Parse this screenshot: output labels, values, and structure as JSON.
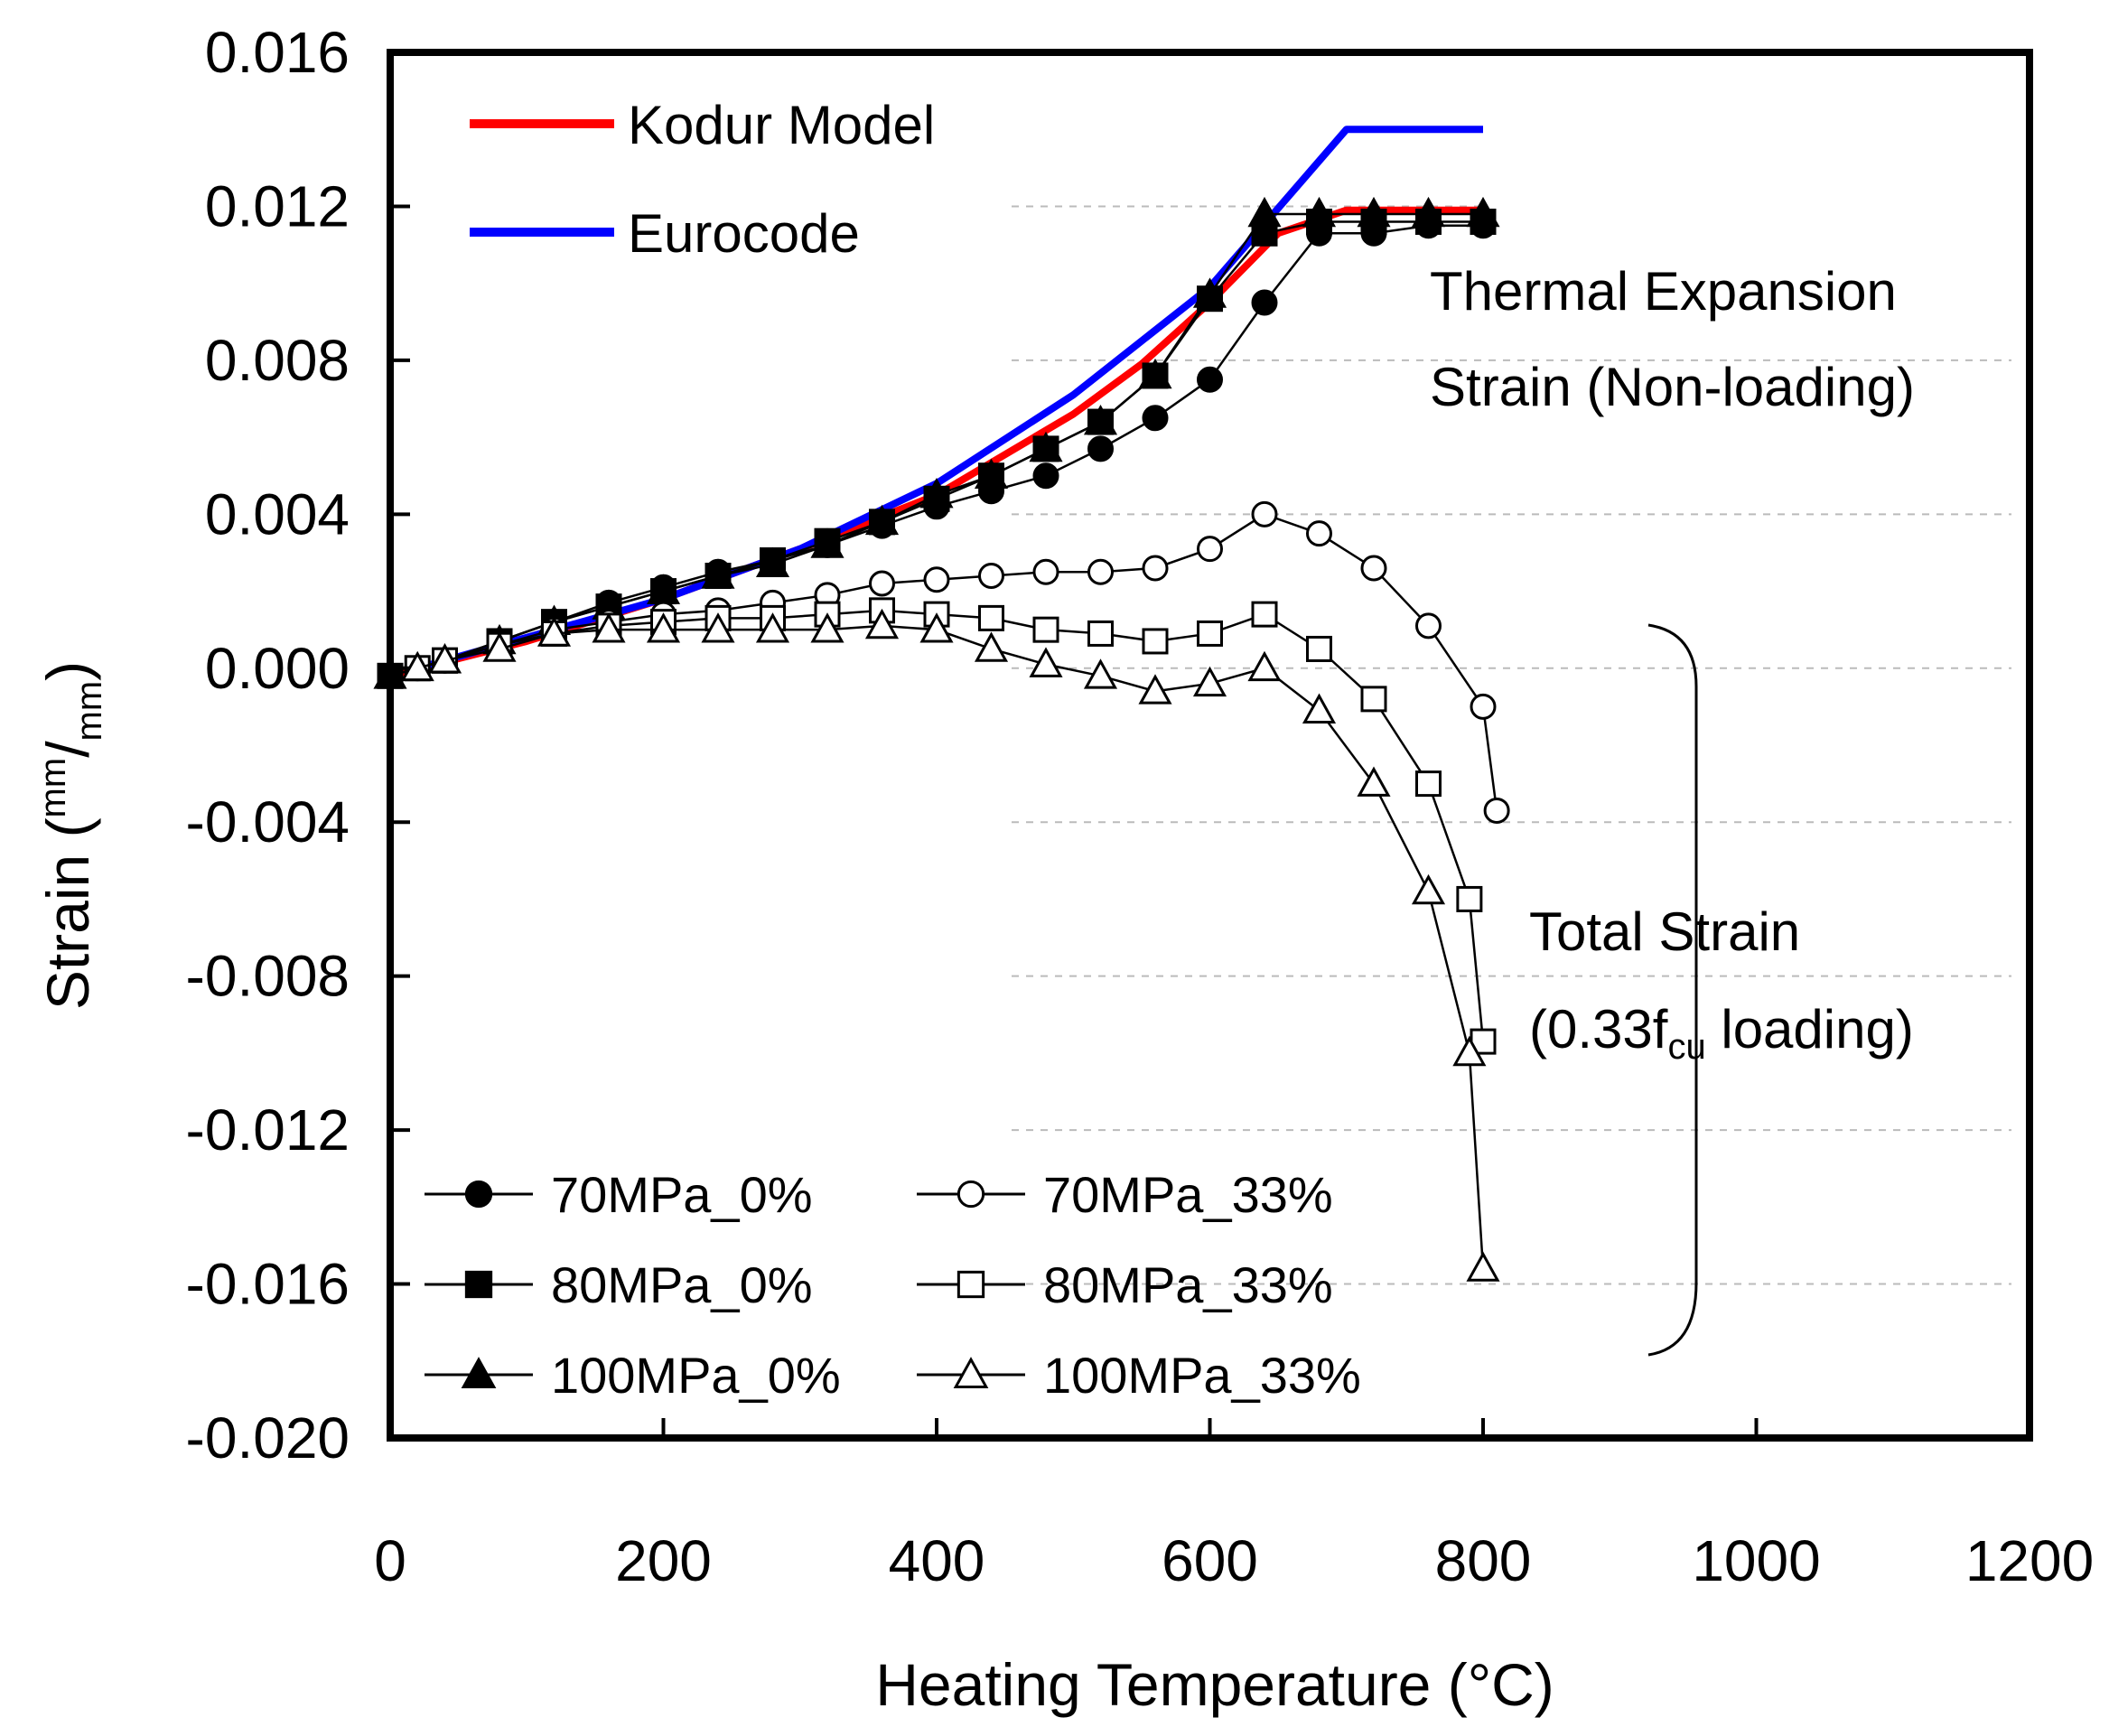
{
  "chart_data": {
    "type": "line",
    "xlabel": "Heating Temperature (°C)",
    "ylabel": {
      "prefix": "Strain (",
      "num": "mm",
      "slash": "/",
      "den": "mm",
      "suffix": ")"
    },
    "xlim": [
      0,
      1200
    ],
    "ylim": [
      -0.02,
      0.016
    ],
    "xticks": [
      0,
      200,
      400,
      600,
      800,
      1000,
      1200
    ],
    "xtick_labels": [
      "0",
      "200",
      "400",
      "600",
      "800",
      "1000",
      "1200"
    ],
    "yticks": [
      0.016,
      0.012,
      0.008,
      0.004,
      0.0,
      -0.004,
      -0.008,
      -0.012,
      -0.016,
      -0.02
    ],
    "ytick_labels": [
      "0.016",
      "0.012",
      "0.008",
      "0.004",
      "0.000",
      "-0.004",
      "-0.008",
      "-0.012",
      "-0.016",
      "-0.020"
    ],
    "gridlines_y": [
      0.012,
      0.008,
      0.004,
      0.0,
      -0.004,
      -0.008,
      -0.012,
      -0.016
    ],
    "model_legend": [
      {
        "name": "Kodur Model",
        "color": "#ff0000"
      },
      {
        "name": "Eurocode",
        "color": "#0000ff"
      }
    ],
    "models": [
      {
        "name": "Kodur Model",
        "color": "#ff0000",
        "x": [
          0,
          100,
          200,
          300,
          400,
          500,
          550,
          600,
          650,
          700,
          750,
          800
        ],
        "y": [
          -0.0002,
          0.0007,
          0.0018,
          0.0031,
          0.0045,
          0.0066,
          0.0079,
          0.0095,
          0.0113,
          0.0119,
          0.0119,
          0.0119
        ]
      },
      {
        "name": "Eurocode",
        "color": "#0000ff",
        "x": [
          20,
          100,
          200,
          300,
          400,
          500,
          600,
          700,
          800
        ],
        "y": [
          0.0,
          0.0008,
          0.0018,
          0.0031,
          0.0048,
          0.0071,
          0.0099,
          0.014,
          0.014
        ]
      }
    ],
    "series": [
      {
        "name": "70MPa_0%",
        "marker": "circle",
        "filled": true,
        "x": [
          0,
          40,
          80,
          120,
          160,
          200,
          240,
          280,
          320,
          360,
          400,
          440,
          480,
          520,
          560,
          600,
          640,
          680,
          720,
          760,
          800
        ],
        "y": [
          -0.0002,
          0.0002,
          0.0007,
          0.0012,
          0.0017,
          0.0021,
          0.0025,
          0.0028,
          0.0032,
          0.0037,
          0.0042,
          0.0046,
          0.005,
          0.0057,
          0.0065,
          0.0075,
          0.0095,
          0.0113,
          0.0113,
          0.0115,
          0.0115
        ]
      },
      {
        "name": "80MPa_0%",
        "marker": "square",
        "filled": true,
        "x": [
          0,
          40,
          80,
          120,
          160,
          200,
          240,
          280,
          320,
          360,
          400,
          440,
          480,
          520,
          560,
          600,
          640,
          680,
          720,
          760,
          800
        ],
        "y": [
          -0.0002,
          0.0002,
          0.0007,
          0.0012,
          0.0016,
          0.002,
          0.0024,
          0.0028,
          0.0033,
          0.0038,
          0.0044,
          0.005,
          0.0057,
          0.0064,
          0.0076,
          0.0096,
          0.0113,
          0.0116,
          0.0116,
          0.0116,
          0.0116
        ]
      },
      {
        "name": "100MPa_0%",
        "marker": "triangle",
        "filled": true,
        "x": [
          0,
          40,
          80,
          120,
          160,
          200,
          240,
          280,
          320,
          360,
          400,
          440,
          480,
          520,
          560,
          600,
          640,
          680,
          720,
          760,
          800
        ],
        "y": [
          -0.0002,
          0.0002,
          0.0007,
          0.0012,
          0.0016,
          0.002,
          0.0024,
          0.0027,
          0.0032,
          0.0038,
          0.0045,
          0.005,
          0.0057,
          0.0064,
          0.0076,
          0.0097,
          0.0118,
          0.0118,
          0.0118,
          0.0118,
          0.0118
        ]
      },
      {
        "name": "70MPa_33%",
        "marker": "circle",
        "filled": false,
        "x": [
          20,
          40,
          80,
          120,
          160,
          200,
          240,
          280,
          320,
          360,
          400,
          440,
          480,
          520,
          560,
          600,
          640,
          680,
          720,
          760,
          800,
          810
        ],
        "y": [
          0.0,
          0.0002,
          0.0006,
          0.001,
          0.0012,
          0.0014,
          0.0015,
          0.0017,
          0.0019,
          0.0022,
          0.0023,
          0.0024,
          0.0025,
          0.0025,
          0.0026,
          0.0031,
          0.004,
          0.0035,
          0.0026,
          0.0011,
          -0.001,
          -0.0037
        ]
      },
      {
        "name": "80MPa_33%",
        "marker": "square",
        "filled": false,
        "x": [
          20,
          40,
          80,
          120,
          160,
          200,
          240,
          280,
          320,
          360,
          400,
          440,
          480,
          520,
          560,
          600,
          640,
          680,
          720,
          760,
          790,
          800
        ],
        "y": [
          0.0,
          0.0002,
          0.0006,
          0.0009,
          0.0011,
          0.0012,
          0.0013,
          0.0013,
          0.0014,
          0.0015,
          0.0014,
          0.0013,
          0.001,
          0.0009,
          0.0007,
          0.0009,
          0.0014,
          0.0005,
          -0.0008,
          -0.003,
          -0.006,
          -0.0097
        ]
      },
      {
        "name": "100MPa_33%",
        "marker": "triangle",
        "filled": false,
        "x": [
          20,
          40,
          80,
          120,
          160,
          200,
          240,
          280,
          320,
          360,
          400,
          440,
          480,
          520,
          560,
          600,
          640,
          680,
          720,
          760,
          790,
          800
        ],
        "y": [
          0.0,
          0.0002,
          0.0005,
          0.0009,
          0.001,
          0.001,
          0.001,
          0.001,
          0.001,
          0.0011,
          0.001,
          0.0005,
          0.0001,
          -0.0002,
          -0.0006,
          -0.0004,
          0.0,
          -0.0011,
          -0.003,
          -0.0058,
          -0.01,
          -0.0156
        ]
      }
    ],
    "annotations": {
      "thermal_line1": "Thermal Expansion",
      "thermal_line2": "Strain (Non-loading)",
      "total_line1": "Total Strain",
      "total_prefix": "(0.33f",
      "total_sub": "cu",
      "total_suffix": " loading)"
    }
  }
}
